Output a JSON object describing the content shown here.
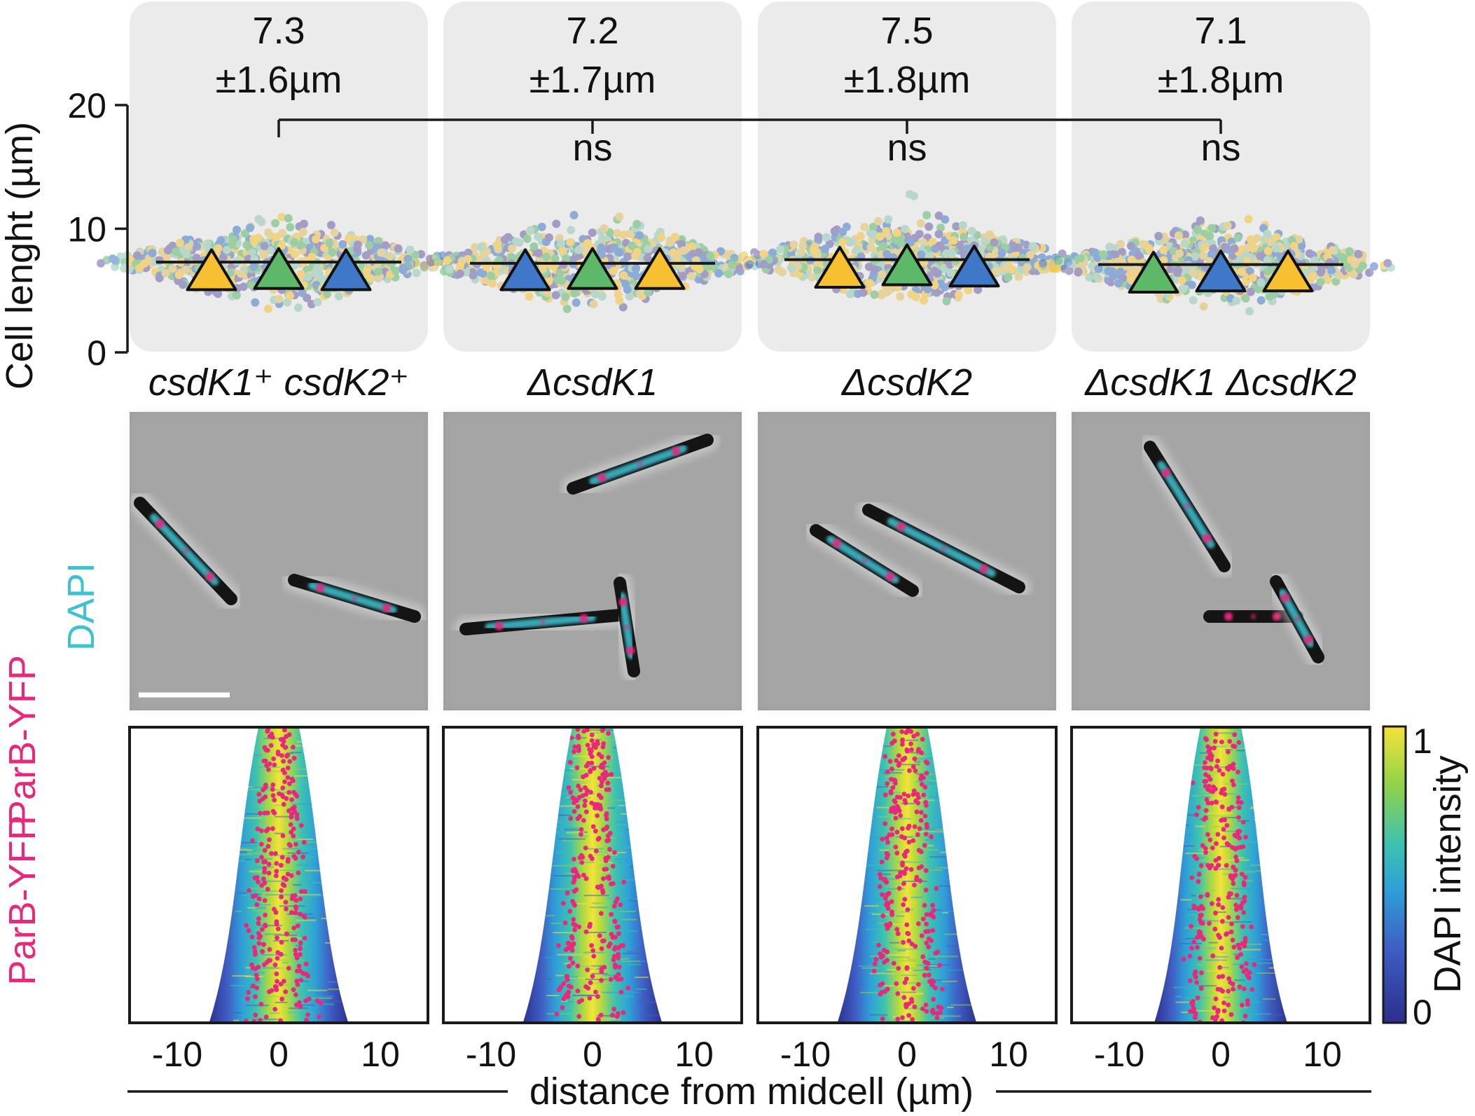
{
  "colors": {
    "panel_bg": "#ebebeb",
    "marker_yellow": "#f7c030",
    "marker_green": "#5db86a",
    "marker_blue": "#3f78c8",
    "parb_magenta": "#e8287a",
    "dapi_cyan": "#3cc2d2",
    "line": "#1a1a1a"
  },
  "chart_data": [
    {
      "type": "scatter",
      "subtype": "superplot",
      "ylabel": "Cell lenght (µm)",
      "ylim": [
        0,
        20
      ],
      "yticks": [
        0,
        10,
        20
      ],
      "categories": [
        "csdK1⁺ csdK2⁺",
        "ΔcsdK1",
        "ΔcsdK2",
        "ΔcsdK1 ΔcsdK2"
      ],
      "groups": [
        {
          "mean": "7.3",
          "sd": "±1.6µm",
          "mean_value": 7.3,
          "replicate_order": [
            "yellow",
            "green",
            "blue"
          ],
          "replicate_values": [
            6.6,
            6.7,
            6.6
          ],
          "significance": ""
        },
        {
          "mean": "7.2",
          "sd": "±1.7µm",
          "mean_value": 7.2,
          "replicate_order": [
            "blue",
            "green",
            "yellow"
          ],
          "replicate_values": [
            6.6,
            6.7,
            6.7
          ],
          "significance": "ns"
        },
        {
          "mean": "7.5",
          "sd": "±1.8µm",
          "mean_value": 7.5,
          "replicate_order": [
            "yellow",
            "green",
            "blue"
          ],
          "replicate_values": [
            6.8,
            7.0,
            6.9
          ],
          "significance": "ns"
        },
        {
          "mean": "7.1",
          "sd": "±1.8µm",
          "mean_value": 7.1,
          "replicate_order": [
            "green",
            "blue",
            "yellow"
          ],
          "replicate_values": [
            6.4,
            6.5,
            6.5
          ],
          "significance": "ns"
        }
      ],
      "comparison_reference": "csdK1⁺ csdK2⁺"
    },
    {
      "type": "image",
      "description_labels": [
        "ParB-YFP",
        "DAPI"
      ],
      "panels": 4
    },
    {
      "type": "heatmap",
      "xlabel": "distance from midcell (µm)",
      "xticks": [
        -10,
        0,
        10
      ],
      "row_label": "ParB-YFP",
      "colorbar_label": "DAPI intensity",
      "colorbar_ticks": [
        0,
        1
      ],
      "colormap": [
        "#2b2e8c",
        "#3f5ec4",
        "#2f9fd8",
        "#3cc2b0",
        "#8fd24a",
        "#f4e23a"
      ],
      "panels": [
        {
          "strain": "csdK1⁺ csdK2⁺",
          "half_width_top": 2.0,
          "half_width_bottom": 6.3
        },
        {
          "strain": "ΔcsdK1",
          "half_width_top": 2.0,
          "half_width_bottom": 6.3
        },
        {
          "strain": "ΔcsdK2",
          "half_width_top": 2.0,
          "half_width_bottom": 6.3
        },
        {
          "strain": "ΔcsdK1 ΔcsdK2",
          "half_width_top": 2.0,
          "half_width_bottom": 6.0
        }
      ]
    }
  ]
}
